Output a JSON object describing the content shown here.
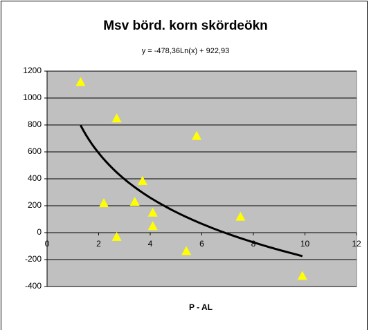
{
  "chart_data": {
    "type": "scatter",
    "title": "Msv börd. korn skördeökn",
    "x_label": "P - AL",
    "x": [
      1.3,
      2.7,
      2.2,
      2.7,
      3.4,
      3.7,
      4.1,
      4.1,
      5.4,
      5.8,
      7.5,
      9.9
    ],
    "values": [
      1120,
      850,
      220,
      -30,
      230,
      385,
      150,
      50,
      -135,
      720,
      120,
      -320
    ],
    "color": "#ffff00",
    "xlim": [
      0,
      12
    ],
    "xticks": [
      0,
      2,
      4,
      6,
      8,
      10,
      12
    ],
    "ylim": [
      -400,
      1200
    ],
    "yticks": [
      -400,
      -200,
      0,
      200,
      400,
      600,
      800,
      1000,
      1200
    ],
    "grid": true,
    "trendline": {
      "label": "y = -478,36Ln(x) + 922,93",
      "a": -478.36,
      "b": 922.93,
      "color": "#000000"
    }
  }
}
